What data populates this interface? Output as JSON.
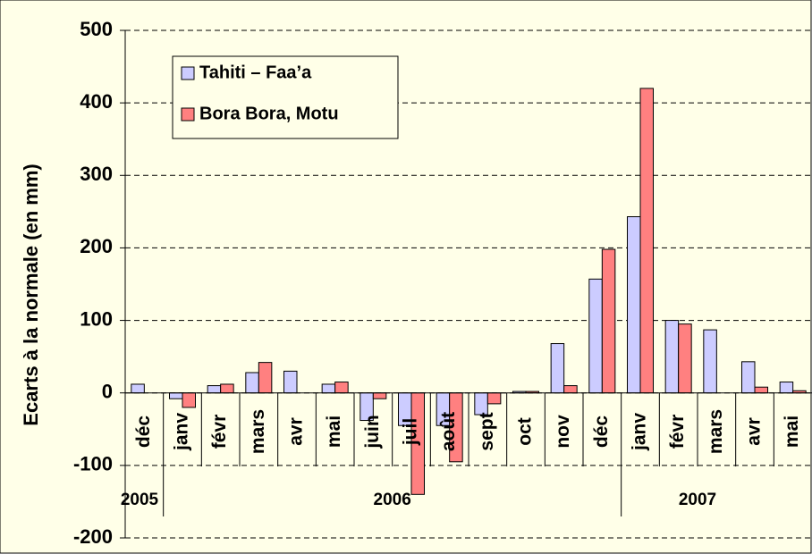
{
  "chart_data": {
    "type": "bar",
    "y_label": "Ecarts à la normale (en mm)",
    "categories": [
      "déc",
      "janv",
      "févr",
      "mars",
      "avr",
      "mai",
      "juin",
      "juil",
      "août",
      "sept",
      "oct",
      "nov",
      "déc",
      "janv",
      "févr",
      "mars",
      "avr",
      "mai"
    ],
    "year_labels": [
      "2005",
      "2006",
      "2007"
    ],
    "series": [
      {
        "name": "Tahiti – Faa’a",
        "color": "#ccccff",
        "values": [
          12,
          -8,
          10,
          28,
          30,
          12,
          -38,
          -45,
          -45,
          -30,
          2,
          68,
          157,
          243,
          100,
          87,
          43,
          15
        ]
      },
      {
        "name": "Bora Bora, Motu",
        "color": "#ff8080",
        "values": [
          null,
          -20,
          12,
          42,
          null,
          15,
          -8,
          -140,
          -95,
          -15,
          2,
          10,
          198,
          420,
          95,
          null,
          8,
          3
        ]
      }
    ],
    "ylim": [
      -200,
      500
    ],
    "yticks": [
      -200,
      -100,
      0,
      100,
      200,
      300,
      400,
      500
    ],
    "grid": true,
    "legend": "top-left"
  }
}
